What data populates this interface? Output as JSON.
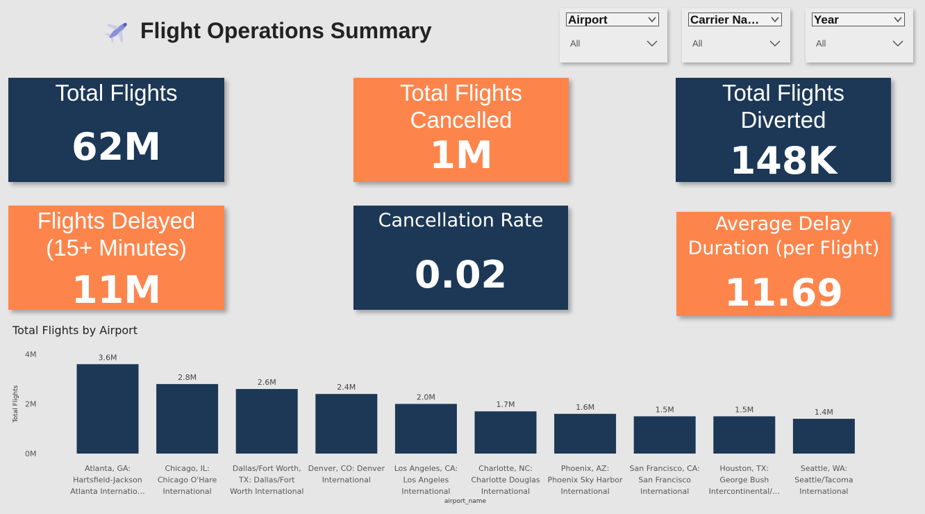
{
  "header": {
    "title": "Flight Operations Summary",
    "icon": "airplane-icon"
  },
  "slicers": [
    {
      "label": "Airport",
      "value": "All"
    },
    {
      "label": "Carrier Na…",
      "value": "All"
    },
    {
      "label": "Year",
      "value": "All"
    }
  ],
  "kpis": {
    "total_flights": {
      "label": "Total Flights",
      "value": "62M"
    },
    "cancelled": {
      "label1": "Total Flights",
      "label2": "Cancelled",
      "value": "1M"
    },
    "diverted": {
      "label1": "Total Flights",
      "label2": "Diverted",
      "value": "148K"
    },
    "delayed": {
      "label1": "Flights Delayed",
      "label2": "(15+ Minutes)",
      "value": "11M"
    },
    "cancellation_rate": {
      "label": "Cancellation Rate",
      "value": "0.02"
    },
    "avg_delay": {
      "label1": "Average Delay",
      "label2": "Duration (per Flight)",
      "value": "11.69"
    }
  },
  "colors": {
    "navy": "#1c3856",
    "orange": "#fd854c",
    "background": "#e6e6e6"
  },
  "chart_data": {
    "type": "bar",
    "title": "Total Flights by Airport",
    "xlabel": "airport_name",
    "ylabel": "Total Flights",
    "ylim": [
      0,
      4000000
    ],
    "yticks": [
      {
        "value": 0,
        "label": "0M"
      },
      {
        "value": 2000000,
        "label": "2M"
      },
      {
        "value": 4000000,
        "label": "4M"
      }
    ],
    "categories": [
      [
        "Atlanta, GA:",
        "Hartsfield-Jackson",
        "Atlanta Internatio…"
      ],
      [
        "Chicago, IL:",
        "Chicago O'Hare",
        "International"
      ],
      [
        "Dallas/Fort Worth,",
        "TX: Dallas/Fort",
        "Worth International"
      ],
      [
        "Denver, CO: Denver",
        "International"
      ],
      [
        "Los Angeles, CA:",
        "Los Angeles",
        "International"
      ],
      [
        "Charlotte, NC:",
        "Charlotte Douglas",
        "International"
      ],
      [
        "Phoenix, AZ:",
        "Phoenix Sky Harbor",
        "International"
      ],
      [
        "San Francisco, CA:",
        "San Francisco",
        "International"
      ],
      [
        "Houston, TX:",
        "George Bush",
        "Intercontinental/…"
      ],
      [
        "Seattle, WA:",
        "Seattle/Tacoma",
        "International"
      ]
    ],
    "values": [
      3600000,
      2800000,
      2600000,
      2400000,
      2000000,
      1700000,
      1600000,
      1500000,
      1500000,
      1400000
    ],
    "data_labels": [
      "3.6M",
      "2.8M",
      "2.6M",
      "2.4M",
      "2.0M",
      "1.7M",
      "1.6M",
      "1.5M",
      "1.5M",
      "1.4M"
    ],
    "bar_color": "#1c3856"
  }
}
